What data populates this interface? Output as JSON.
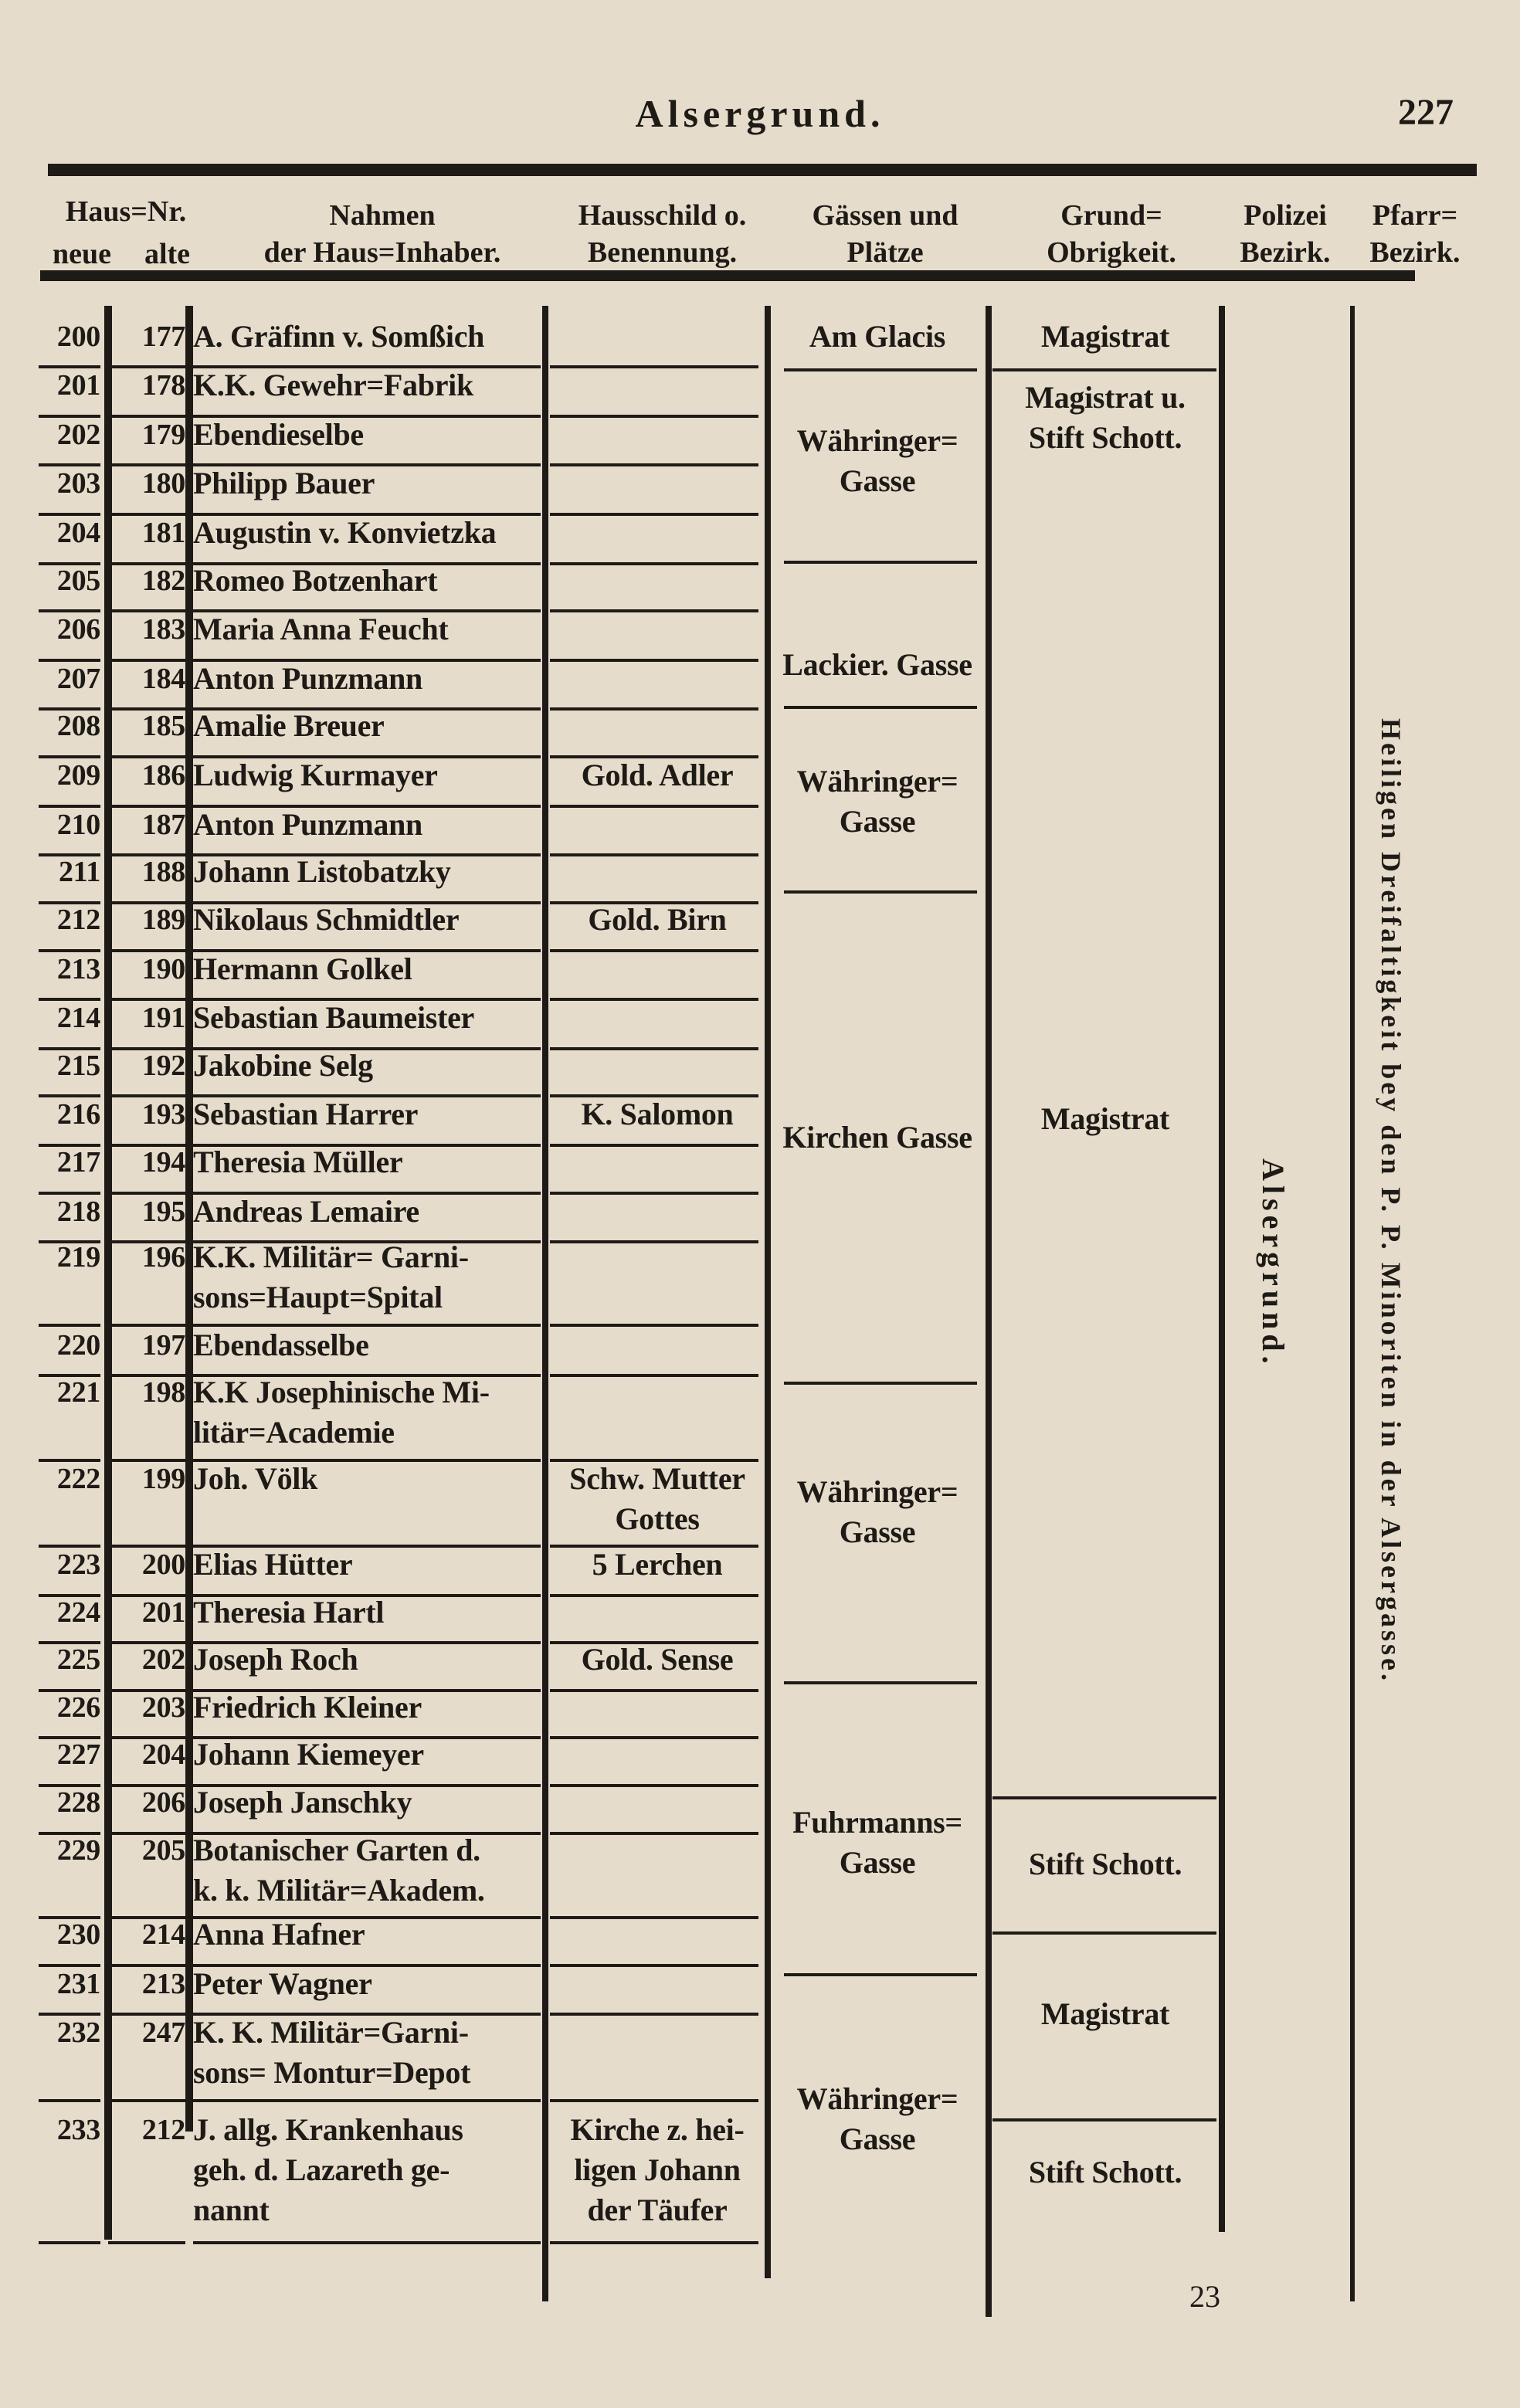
{
  "header": {
    "title": "Alsergrund.",
    "page_number": "227"
  },
  "columns": {
    "haus_nr": "Haus=Nr.",
    "neue": "neue",
    "alte": "alte",
    "name": "Nahmen\nder Haus=Inhaber.",
    "schild": "Hausschild o.\nBenennung.",
    "gassen": "Gässen und\nPlätze",
    "grund": "Grund=\nObrigkeit.",
    "polizei": "Polizei\nBezirk.",
    "pfarr": "Pfarr=\nBezirk."
  },
  "rows": [
    {
      "neue": "200",
      "alte": "177",
      "name": "A. Gräfinn v. Somßich",
      "schild": ""
    },
    {
      "neue": "201",
      "alte": "178",
      "name": "K.K. Gewehr=Fabrik",
      "schild": ""
    },
    {
      "neue": "202",
      "alte": "179",
      "name": "Ebendieselbe",
      "schild": ""
    },
    {
      "neue": "203",
      "alte": "180",
      "name": "Philipp Bauer",
      "schild": ""
    },
    {
      "neue": "204",
      "alte": "181",
      "name": "Augustin v. Konvietzka",
      "schild": ""
    },
    {
      "neue": "205",
      "alte": "182",
      "name": "Romeo Botzenhart",
      "schild": ""
    },
    {
      "neue": "206",
      "alte": "183",
      "name": "Maria Anna Feucht",
      "schild": ""
    },
    {
      "neue": "207",
      "alte": "184",
      "name": "Anton Punzmann",
      "schild": ""
    },
    {
      "neue": "208",
      "alte": "185",
      "name": "Amalie Breuer",
      "schild": ""
    },
    {
      "neue": "209",
      "alte": "186",
      "name": "Ludwig Kurmayer",
      "schild": "Gold. Adler"
    },
    {
      "neue": "210",
      "alte": "187",
      "name": "Anton Punzmann",
      "schild": ""
    },
    {
      "neue": "211",
      "alte": "188",
      "name": "Johann Listobatzky",
      "schild": ""
    },
    {
      "neue": "212",
      "alte": "189",
      "name": "Nikolaus Schmidtler",
      "schild": "Gold. Birn"
    },
    {
      "neue": "213",
      "alte": "190",
      "name": "Hermann Golkel",
      "schild": ""
    },
    {
      "neue": "214",
      "alte": "191",
      "name": "Sebastian Baumeister",
      "schild": ""
    },
    {
      "neue": "215",
      "alte": "192",
      "name": "Jakobine Selg",
      "schild": ""
    },
    {
      "neue": "216",
      "alte": "193",
      "name": "Sebastian Harrer",
      "schild": "K. Salomon"
    },
    {
      "neue": "217",
      "alte": "194",
      "name": "Theresia Müller",
      "schild": ""
    },
    {
      "neue": "218",
      "alte": "195",
      "name": "Andreas Lemaire",
      "schild": ""
    },
    {
      "neue": "219",
      "alte": "196",
      "name": "K.K. Militär= Garni-\nsons=Haupt=Spital",
      "schild": ""
    },
    {
      "neue": "220",
      "alte": "197",
      "name": "Ebendasselbe",
      "schild": ""
    },
    {
      "neue": "221",
      "alte": "198",
      "name": "K.K Josephinische Mi-\nlitär=Academie",
      "schild": ""
    },
    {
      "neue": "222",
      "alte": "199",
      "name": "Joh. Völk",
      "schild": "Schw. Mutter\nGottes"
    },
    {
      "neue": "223",
      "alte": "200",
      "name": "Elias Hütter",
      "schild": "5 Lerchen"
    },
    {
      "neue": "224",
      "alte": "201",
      "name": "Theresia Hartl",
      "schild": ""
    },
    {
      "neue": "225",
      "alte": "202",
      "name": "Joseph Roch",
      "schild": "Gold. Sense"
    },
    {
      "neue": "226",
      "alte": "203",
      "name": "Friedrich Kleiner",
      "schild": ""
    },
    {
      "neue": "227",
      "alte": "204",
      "name": "Johann Kiemeyer",
      "schild": ""
    },
    {
      "neue": "228",
      "alte": "206",
      "name": "Joseph Janschky",
      "schild": ""
    },
    {
      "neue": "229",
      "alte": "205",
      "name": "Botanischer Garten d.\nk. k. Militär=Akadem.",
      "schild": ""
    },
    {
      "neue": "230",
      "alte": "214",
      "name": "Anna Hafner",
      "schild": ""
    },
    {
      "neue": "231",
      "alte": "213",
      "name": "Peter Wagner",
      "schild": ""
    },
    {
      "neue": "232",
      "alte": "247",
      "name": "K. K. Militär=Garni-\nsons= Montur=Depot",
      "schild": ""
    },
    {
      "neue": "233",
      "alte": "212",
      "name": "J. allg. Krankenhaus\ngeh. d. Lazareth ge-\nnannt",
      "schild": "Kirche z. hei-\nligen Johann\nder Täufer"
    }
  ],
  "gassen": [
    "Am Glacis",
    "Währinger=\nGasse",
    "Lackier. Gasse",
    "Währinger=\nGasse",
    "Kirchen Gasse",
    "Währinger=\nGasse",
    "Fuhrmanns=\nGasse",
    "Währinger=\nGasse"
  ],
  "grund": [
    "Magistrat",
    "Magistrat u.\nStift Schott.",
    "Magistrat",
    "Stift Schott.",
    "Magistrat",
    "Stift Schott."
  ],
  "polizei_bezirk": "Alsergrund.",
  "pfarr_bezirk": "Heiligen Dreifaltigkeit bey den P. P. Minoriten in der Alsergasse.",
  "signature_mark": "23"
}
